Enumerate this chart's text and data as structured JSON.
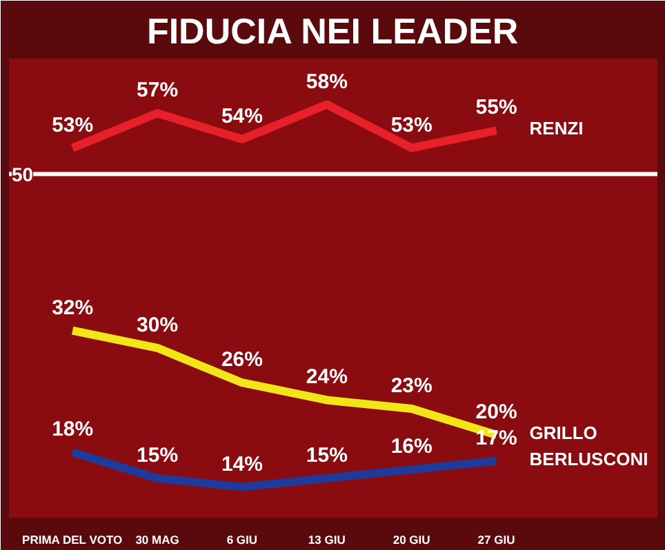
{
  "chart_data": {
    "type": "line",
    "title": "FIDUCIA NEI LEADER",
    "categories": [
      "PRIMA DEL VOTO",
      "30 MAG",
      "6 GIU",
      "13 GIU",
      "20 GIU",
      "27 GIU"
    ],
    "series": [
      {
        "name": "RENZI",
        "color": "#e8202a",
        "values": [
          53,
          57,
          54,
          58,
          53,
          55
        ],
        "value_labels": [
          "53%",
          "57%",
          "54%",
          "58%",
          "53%",
          "55%"
        ]
      },
      {
        "name": "GRILLO",
        "color": "#f2e619",
        "values": [
          32,
          30,
          26,
          24,
          23,
          20
        ],
        "value_labels": [
          "32%",
          "30%",
          "26%",
          "24%",
          "23%",
          "20%"
        ]
      },
      {
        "name": "BERLUSCONI",
        "color": "#1f3a9a",
        "values": [
          18,
          15,
          14,
          15,
          16,
          17
        ],
        "value_labels": [
          "18%",
          "15%",
          "14%",
          "15%",
          "16%",
          "17%"
        ]
      }
    ],
    "ref_lines": [
      {
        "axis": "y",
        "value": 50,
        "label": "50",
        "color": "#ffffff"
      }
    ],
    "tick_labels": "x",
    "grid": false,
    "marker": "none",
    "line_style": "solid"
  }
}
